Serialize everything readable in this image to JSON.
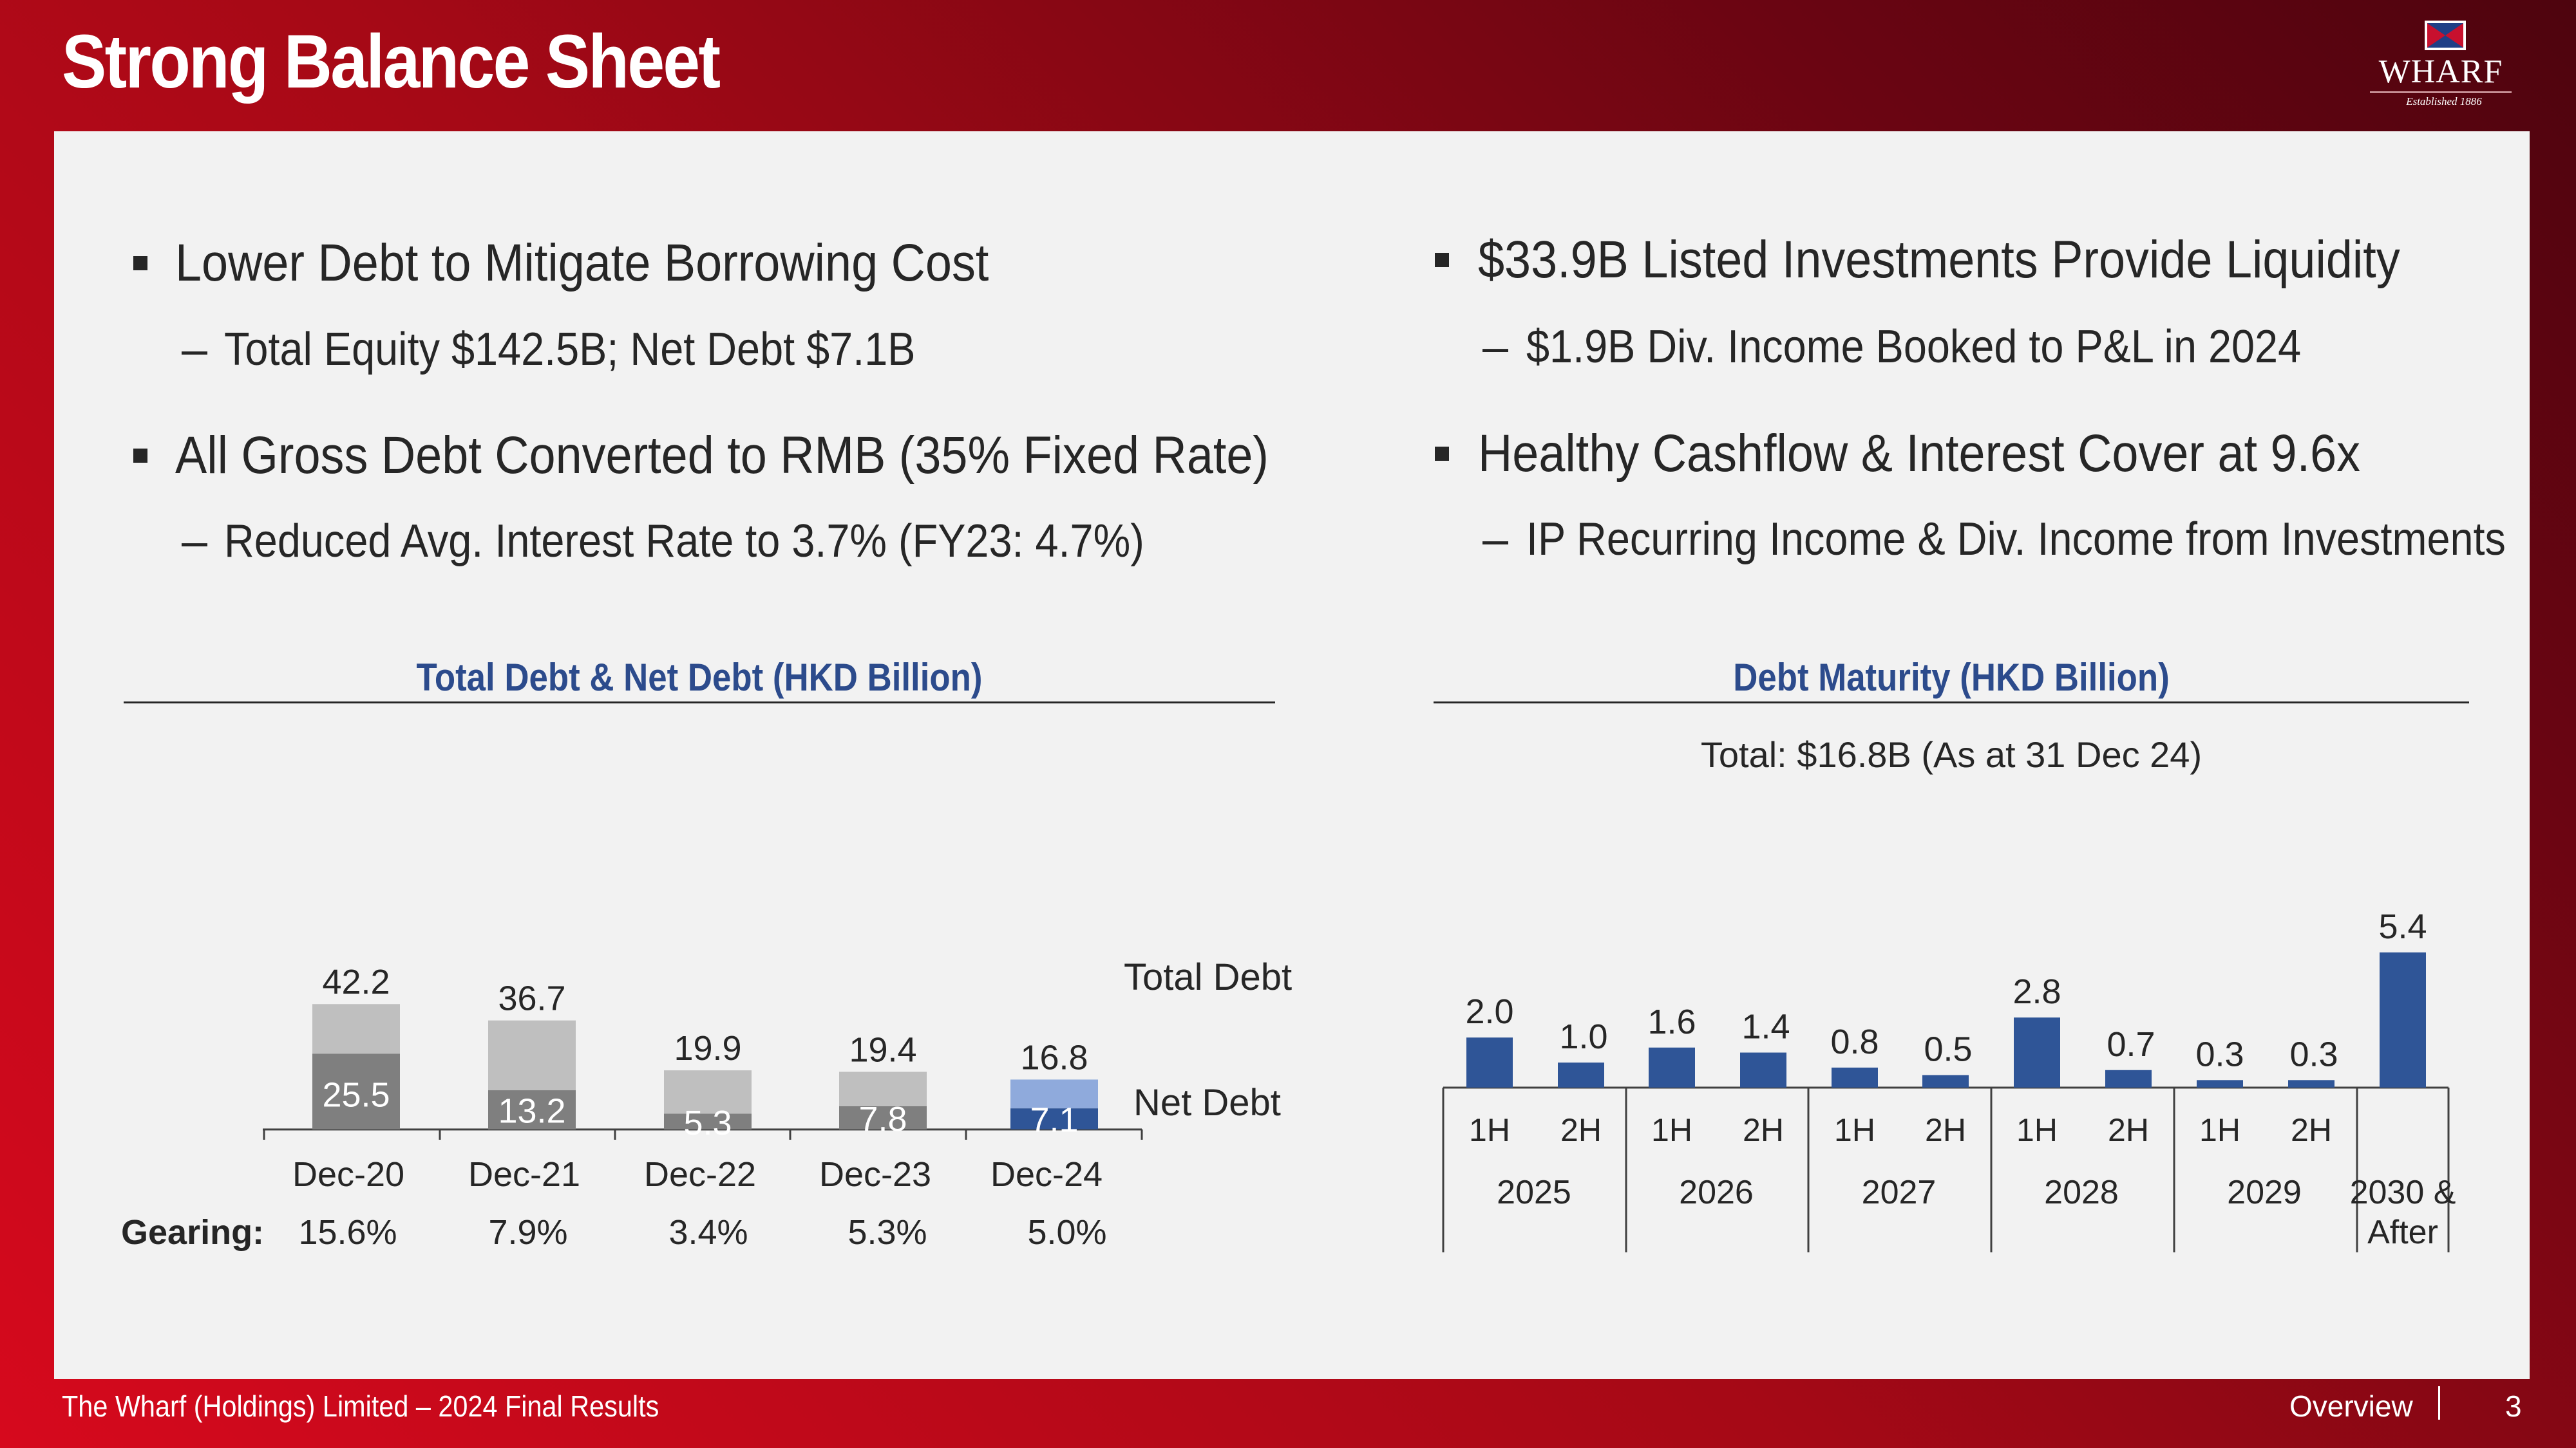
{
  "header": {
    "title": "Strong Balance Sheet"
  },
  "logo": {
    "brand": "WHARF",
    "tagline": "Established 1886"
  },
  "left_bullets": {
    "b1": "Lower Debt to Mitigate Borrowing Cost",
    "b1_sub": "Total Equity $142.5B; Net Debt $7.1B",
    "b2": "All Gross Debt Converted to RMB (35% Fixed Rate)",
    "b2_sub": "Reduced Avg. Interest Rate to 3.7% (FY23: 4.7%)"
  },
  "right_bullets": {
    "b1": "$33.9B Listed Investments Provide Liquidity",
    "b1_sub": "$1.9B Div. Income Booked to P&L in 2024",
    "b2": "Healthy Cashflow & Interest Cover at 9.6x",
    "b2_sub": "IP Recurring Income & Div. Income from Investments"
  },
  "dash_symbol": "–",
  "chart_data": [
    {
      "type": "bar",
      "title": "Total Debt & Net Debt (HKD Billion)",
      "categories": [
        "Dec-20",
        "Dec-21",
        "Dec-22",
        "Dec-23",
        "Dec-24"
      ],
      "series": [
        {
          "name": "Total Debt",
          "values": [
            42.2,
            36.7,
            19.9,
            19.4,
            16.8
          ]
        },
        {
          "name": "Net Debt",
          "values": [
            25.5,
            13.2,
            5.3,
            7.8,
            7.1
          ]
        }
      ],
      "value_labels": {
        "total": [
          "42.2",
          "36.7",
          "19.9",
          "19.4",
          "16.8"
        ],
        "net": [
          "25.5",
          "13.2",
          "5.3",
          "7.8",
          "7.1"
        ]
      },
      "gearing_label": "Gearing:",
      "gearing": [
        "15.6%",
        "7.9%",
        "3.4%",
        "5.3%",
        "5.0%"
      ],
      "ylim": [
        0,
        50
      ],
      "colors": {
        "total_light": "#bfbfbf",
        "net_dark": "#7f7f7f",
        "total_highlight": "#8faadc",
        "net_highlight": "#2f5597"
      }
    },
    {
      "type": "bar",
      "title": "Debt Maturity (HKD Billion)",
      "subtitle": "Total: $16.8B (As at 31 Dec 24)",
      "categories": [
        "1H",
        "2H",
        "1H",
        "2H",
        "1H",
        "2H",
        "1H",
        "2H",
        "1H",
        "2H",
        "2030 & After"
      ],
      "values": [
        2.0,
        1.0,
        1.6,
        1.4,
        0.8,
        0.5,
        2.8,
        0.7,
        0.3,
        0.3,
        5.4
      ],
      "value_labels": [
        "2.0",
        "1.0",
        "1.6",
        "1.4",
        "0.8",
        "0.5",
        "2.8",
        "0.7",
        "0.3",
        "0.3",
        "5.4"
      ],
      "halves": [
        "1H",
        "2H",
        "1H",
        "2H",
        "1H",
        "2H",
        "1H",
        "2H",
        "1H",
        "2H"
      ],
      "years": [
        "2025",
        "2026",
        "2027",
        "2028",
        "2029"
      ],
      "last_label": [
        "2030 &",
        "After"
      ],
      "ylim": [
        0,
        6
      ],
      "colors": {
        "bar": "#2f5597"
      }
    }
  ],
  "footer": {
    "left": "The Wharf (Holdings) Limited – 2024 Final Results",
    "section": "Overview",
    "page": "3"
  }
}
